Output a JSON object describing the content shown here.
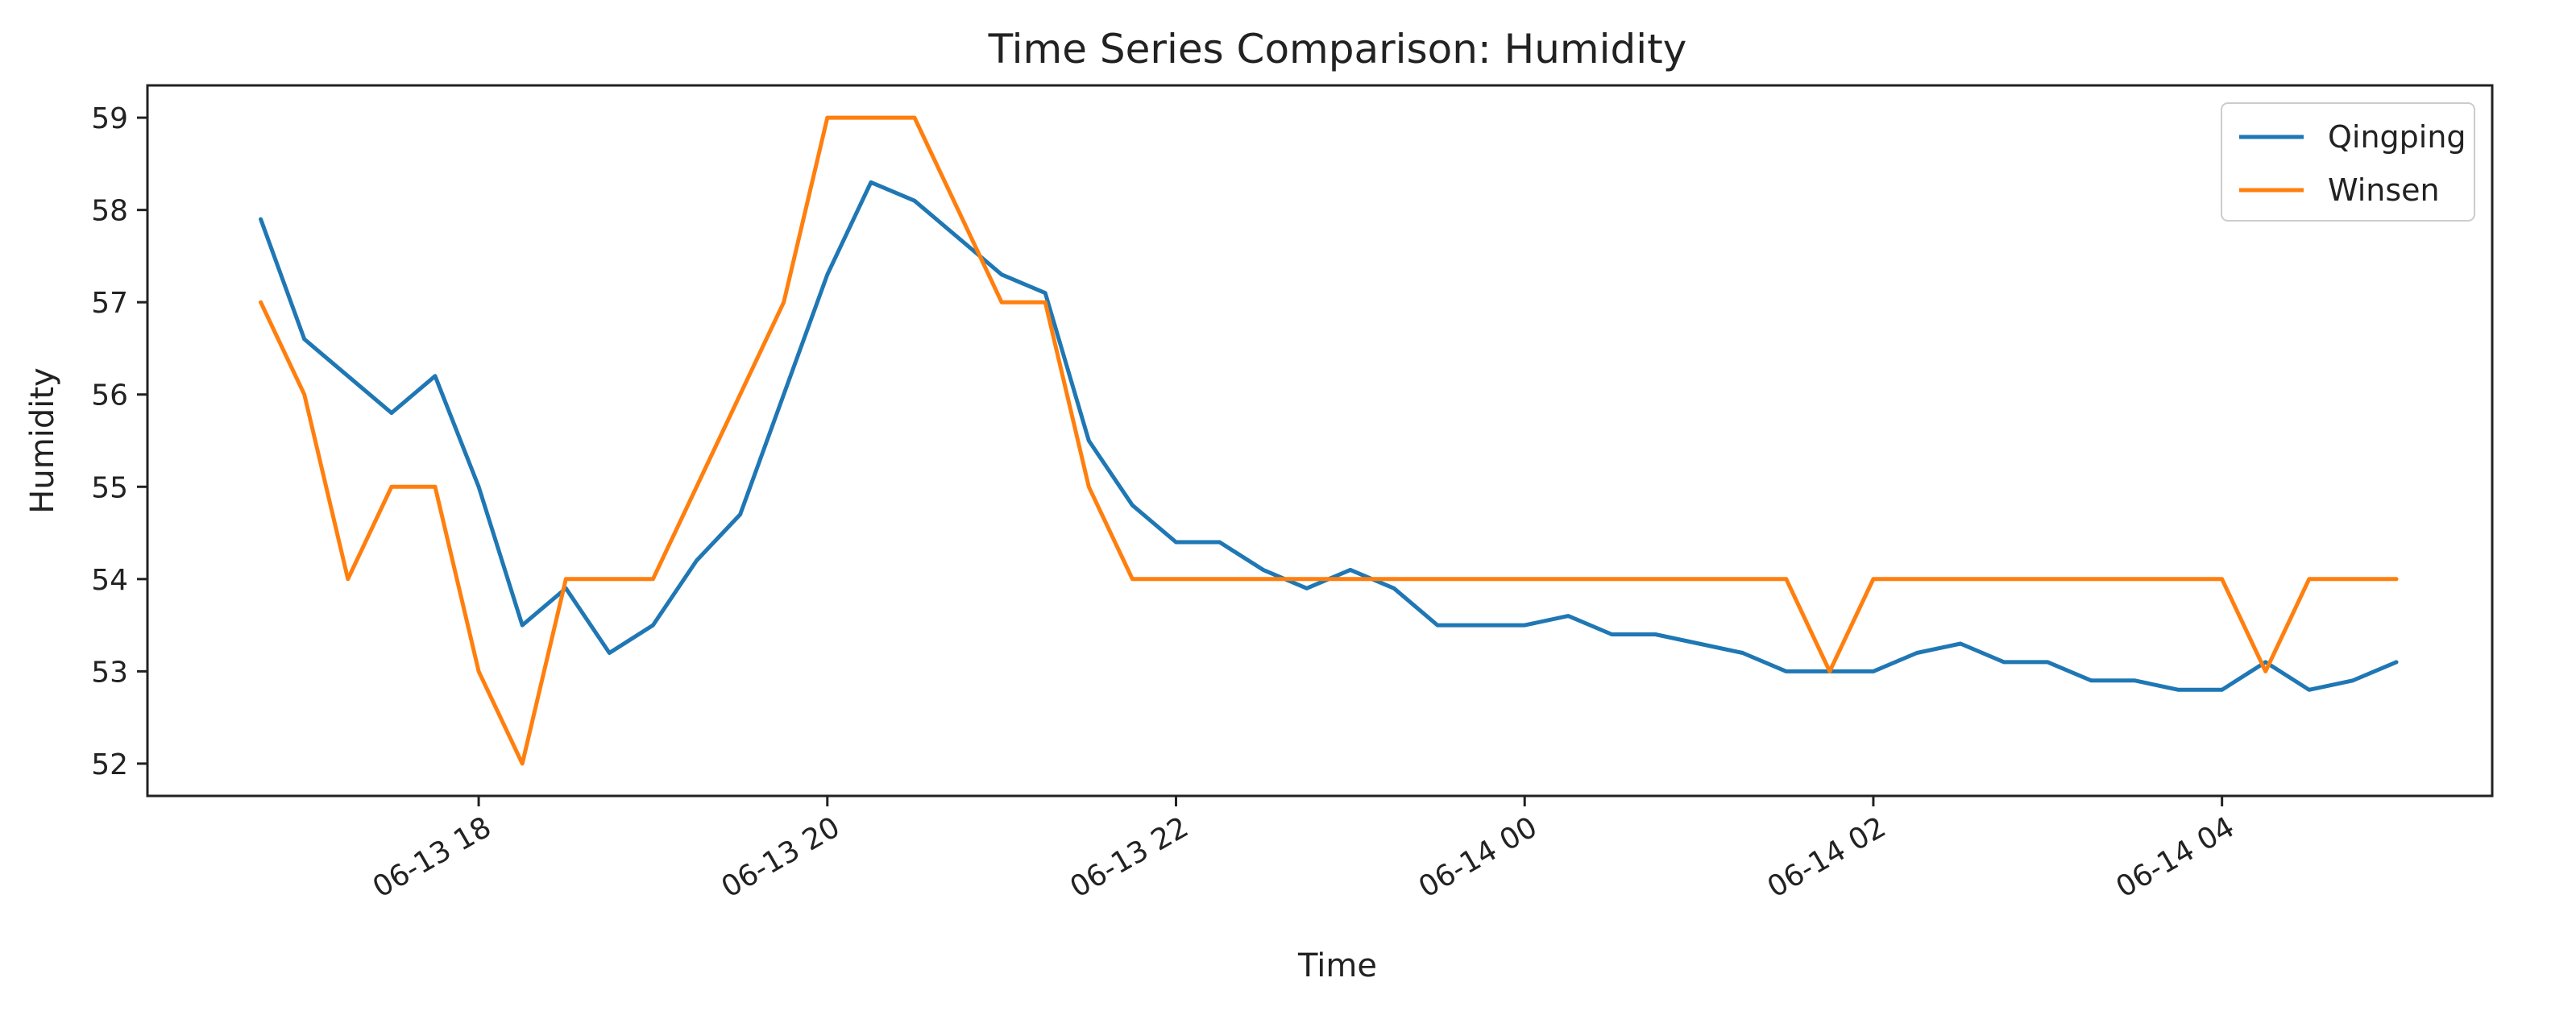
{
  "chart_data": {
    "type": "line",
    "title": "Time Series Comparison: Humidity",
    "xlabel": "Time",
    "ylabel": "Humidity",
    "x_tick_labels": [
      {
        "value": 1,
        "label": "06-13 18"
      },
      {
        "value": 3,
        "label": "06-13 20"
      },
      {
        "value": 5,
        "label": "06-13 22"
      },
      {
        "value": 7,
        "label": "06-14 00"
      },
      {
        "value": 9,
        "label": "06-14 02"
      },
      {
        "value": 11,
        "label": "06-14 04"
      }
    ],
    "y_ticks": [
      52,
      53,
      54,
      55,
      56,
      57,
      58,
      59
    ],
    "xlim": [
      -0.9,
      12.55
    ],
    "ylim": [
      51.65,
      59.35
    ],
    "grid": false,
    "legend_position": "top-right",
    "x": [
      -0.25,
      0,
      0.25,
      0.5,
      0.75,
      1,
      1.25,
      1.5,
      1.75,
      2,
      2.25,
      2.5,
      2.75,
      3,
      3.25,
      3.5,
      3.75,
      4,
      4.25,
      4.5,
      4.75,
      5,
      5.25,
      5.5,
      5.75,
      6,
      6.25,
      6.5,
      6.75,
      7,
      7.25,
      7.5,
      7.75,
      8,
      8.25,
      8.5,
      8.75,
      9,
      9.25,
      9.5,
      9.75,
      10,
      10.25,
      10.5,
      10.75,
      11,
      11.25,
      11.5,
      11.75,
      12
    ],
    "series": [
      {
        "name": "Qingping",
        "color": "#1f77b4",
        "values": [
          57.9,
          56.6,
          56.2,
          55.8,
          56.2,
          55.0,
          53.5,
          53.9,
          53.2,
          53.5,
          54.2,
          54.7,
          56.0,
          57.3,
          58.3,
          58.1,
          57.7,
          57.3,
          57.1,
          55.5,
          54.8,
          54.4,
          54.4,
          54.1,
          53.9,
          54.1,
          53.9,
          53.5,
          53.5,
          53.5,
          53.6,
          53.4,
          53.4,
          53.3,
          53.2,
          53.0,
          53.0,
          53.0,
          53.2,
          53.3,
          53.1,
          53.1,
          52.9,
          52.9,
          52.8,
          52.8,
          53.1,
          52.8,
          52.9,
          53.1
        ]
      },
      {
        "name": "Winsen",
        "color": "#ff7f0e",
        "values": [
          57,
          56,
          54,
          55,
          55,
          53,
          52,
          54,
          54,
          54,
          55,
          56,
          57,
          59,
          59,
          59,
          58,
          57,
          57,
          55,
          54,
          54,
          54,
          54,
          54,
          54,
          54,
          54,
          54,
          54,
          54,
          54,
          54,
          54,
          54,
          54,
          53,
          54,
          54,
          54,
          54,
          54,
          54,
          54,
          54,
          54,
          53,
          54,
          54,
          54
        ]
      }
    ]
  }
}
